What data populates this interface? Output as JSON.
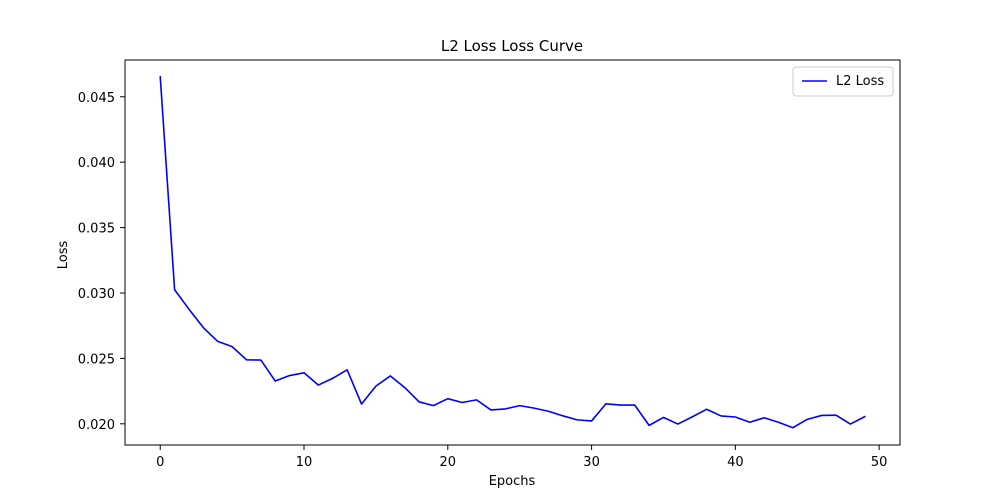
{
  "chart_data": {
    "type": "line",
    "title": "L2 Loss Loss Curve",
    "xlabel": "Epochs",
    "ylabel": "Loss",
    "xlim": [
      -2.45,
      51.45
    ],
    "ylim": [
      0.01838,
      0.04781
    ],
    "x_ticks": [
      0,
      10,
      20,
      30,
      40,
      50
    ],
    "y_ticks": [
      0.02,
      0.025,
      0.03,
      0.035,
      0.04,
      0.045
    ],
    "x_tick_labels": [
      "0",
      "10",
      "20",
      "30",
      "40",
      "50"
    ],
    "y_tick_labels": [
      "0.020",
      "0.025",
      "0.030",
      "0.035",
      "0.040",
      "0.045"
    ],
    "grid": false,
    "legend": {
      "position": "top-right",
      "entries": [
        "L2 Loss"
      ]
    },
    "series": [
      {
        "name": "L2 Loss",
        "color": "#0000ff",
        "x": [
          0,
          1,
          2,
          3,
          4,
          5,
          6,
          7,
          8,
          9,
          10,
          11,
          12,
          13,
          14,
          15,
          16,
          17,
          18,
          19,
          20,
          21,
          22,
          23,
          24,
          25,
          26,
          27,
          28,
          29,
          30,
          31,
          32,
          33,
          34,
          35,
          36,
          37,
          38,
          39,
          40,
          41,
          42,
          43,
          44,
          45,
          46,
          47,
          48,
          49
        ],
        "values": [
          0.04654,
          0.03025,
          0.02876,
          0.02735,
          0.0263,
          0.0259,
          0.02489,
          0.02487,
          0.02327,
          0.02369,
          0.0239,
          0.02296,
          0.02348,
          0.02413,
          0.02151,
          0.02288,
          0.02366,
          0.02278,
          0.02168,
          0.02139,
          0.02192,
          0.02163,
          0.02183,
          0.02106,
          0.02114,
          0.02139,
          0.0212,
          0.02096,
          0.02061,
          0.0203,
          0.02022,
          0.02153,
          0.02143,
          0.02143,
          0.01988,
          0.02049,
          0.01998,
          0.02053,
          0.02111,
          0.0206,
          0.02052,
          0.02012,
          0.02046,
          0.02012,
          0.0197,
          0.02034,
          0.02064,
          0.02066,
          0.01998,
          0.02055
        ]
      }
    ]
  }
}
